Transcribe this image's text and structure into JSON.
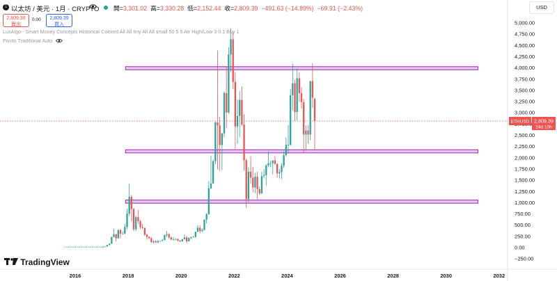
{
  "header": {
    "logo_glyph": "Ξ",
    "title": "以太坊 / 美元 · 1月 · CRYPTO",
    "ohlc": {
      "open_label": "開=",
      "open": "3,301.02",
      "high_label": "高=",
      "high": "3,330.28",
      "low_label": "低=",
      "low": "2,152.44",
      "close_label": "收=",
      "close": "2,809.39",
      "change": "−491.63 (−14.89%)",
      "extra": "−69.91 (−2.43%)"
    },
    "currency": "USD"
  },
  "trade": {
    "sell_price": "2,809.39",
    "sell_label": "賣出",
    "spread": "0.00",
    "buy_price": "2,809.39",
    "buy_label": "買入"
  },
  "indicators": [
    {
      "label": "LuxAlgo - Smart Money Concepts Historical Colored All All tiny All All small 50 5 5 Atr High/Low 3 0.1 Buy 1"
    },
    {
      "label": "Pivots Traditional Auto"
    }
  ],
  "price_tag": {
    "symbol": "ETHUSD",
    "price": "2,809.39",
    "countdown": "24d 10h"
  },
  "brand": "TradingView",
  "colors": {
    "up": "#26a69a",
    "down": "#ef5350",
    "zone_fill": "#e7c7f0",
    "zone_stroke": "#9c27b0"
  },
  "chart_data": {
    "type": "candlestick",
    "y_ticks": [
      5000,
      4750,
      4500,
      4250,
      4000,
      3750,
      3500,
      3250,
      3000,
      2750,
      2500,
      2250,
      2000,
      1750,
      1500,
      1250,
      1000,
      750,
      500,
      250,
      0,
      -250
    ],
    "y_tick_labels": [
      "5,000.00",
      "4,750.00",
      "4,500.00",
      "4,250.00",
      "4,000.00",
      "3,750.00",
      "3,500.00",
      "3,250.00",
      "3,000.00",
      "2,750.00",
      "2,500.00",
      "2,250.00",
      "2,000.00",
      "1,750.00",
      "1,500.00",
      "1,250.00",
      "1,000.00",
      "750.00",
      "500.00",
      "250.00",
      "0.00",
      "−250.00"
    ],
    "x_ticks": [
      2016,
      2018,
      2020,
      2022,
      2024,
      2026,
      2028,
      2030,
      2032
    ],
    "zones": [
      {
        "low": 3950,
        "high": 4020,
        "x_start": 2017.9,
        "x_end": 2031.2
      },
      {
        "low": 2100,
        "high": 2170,
        "x_start": 2017.9,
        "x_end": 2031.2
      },
      {
        "low": 980,
        "high": 1050,
        "x_start": 2017.9,
        "x_end": 2031.2
      }
    ],
    "candles": [
      {
        "t": "2017-01",
        "o": 8,
        "h": 11,
        "l": 8,
        "c": 11
      },
      {
        "t": "2017-02",
        "o": 11,
        "h": 17,
        "l": 10,
        "c": 16
      },
      {
        "t": "2017-03",
        "o": 16,
        "h": 55,
        "l": 15,
        "c": 50
      },
      {
        "t": "2017-04",
        "o": 50,
        "h": 83,
        "l": 42,
        "c": 80
      },
      {
        "t": "2017-05",
        "o": 80,
        "h": 232,
        "l": 75,
        "c": 230
      },
      {
        "t": "2017-06",
        "o": 230,
        "h": 410,
        "l": 220,
        "c": 290
      },
      {
        "t": "2017-07",
        "o": 290,
        "h": 300,
        "l": 130,
        "c": 200
      },
      {
        "t": "2017-08",
        "o": 200,
        "h": 395,
        "l": 190,
        "c": 385
      },
      {
        "t": "2017-09",
        "o": 385,
        "h": 400,
        "l": 200,
        "c": 300
      },
      {
        "t": "2017-10",
        "o": 300,
        "h": 350,
        "l": 280,
        "c": 305
      },
      {
        "t": "2017-11",
        "o": 305,
        "h": 520,
        "l": 290,
        "c": 450
      },
      {
        "t": "2017-12",
        "o": 450,
        "h": 860,
        "l": 400,
        "c": 750
      },
      {
        "t": "2018-01",
        "o": 750,
        "h": 1420,
        "l": 700,
        "c": 1120
      },
      {
        "t": "2018-02",
        "o": 1120,
        "h": 1160,
        "l": 570,
        "c": 850
      },
      {
        "t": "2018-03",
        "o": 850,
        "h": 880,
        "l": 360,
        "c": 400
      },
      {
        "t": "2018-04",
        "o": 400,
        "h": 700,
        "l": 360,
        "c": 670
      },
      {
        "t": "2018-05",
        "o": 670,
        "h": 830,
        "l": 520,
        "c": 580
      },
      {
        "t": "2018-06",
        "o": 580,
        "h": 610,
        "l": 400,
        "c": 450
      },
      {
        "t": "2018-07",
        "o": 450,
        "h": 520,
        "l": 410,
        "c": 430
      },
      {
        "t": "2018-08",
        "o": 430,
        "h": 440,
        "l": 250,
        "c": 280
      },
      {
        "t": "2018-09",
        "o": 280,
        "h": 300,
        "l": 170,
        "c": 230
      },
      {
        "t": "2018-10",
        "o": 230,
        "h": 240,
        "l": 190,
        "c": 200
      },
      {
        "t": "2018-11",
        "o": 200,
        "h": 225,
        "l": 100,
        "c": 115
      },
      {
        "t": "2018-12",
        "o": 115,
        "h": 160,
        "l": 80,
        "c": 133
      },
      {
        "t": "2019-01",
        "o": 133,
        "h": 160,
        "l": 100,
        "c": 108
      },
      {
        "t": "2019-02",
        "o": 108,
        "h": 165,
        "l": 100,
        "c": 136
      },
      {
        "t": "2019-03",
        "o": 136,
        "h": 145,
        "l": 125,
        "c": 141
      },
      {
        "t": "2019-04",
        "o": 141,
        "h": 185,
        "l": 140,
        "c": 160
      },
      {
        "t": "2019-05",
        "o": 160,
        "h": 285,
        "l": 155,
        "c": 270
      },
      {
        "t": "2019-06",
        "o": 270,
        "h": 365,
        "l": 230,
        "c": 290
      },
      {
        "t": "2019-07",
        "o": 290,
        "h": 315,
        "l": 190,
        "c": 218
      },
      {
        "t": "2019-08",
        "o": 218,
        "h": 238,
        "l": 165,
        "c": 172
      },
      {
        "t": "2019-09",
        "o": 172,
        "h": 225,
        "l": 150,
        "c": 180
      },
      {
        "t": "2019-10",
        "o": 180,
        "h": 200,
        "l": 155,
        "c": 182
      },
      {
        "t": "2019-11",
        "o": 182,
        "h": 195,
        "l": 130,
        "c": 150
      },
      {
        "t": "2019-12",
        "o": 150,
        "h": 155,
        "l": 120,
        "c": 129
      },
      {
        "t": "2020-01",
        "o": 129,
        "h": 185,
        "l": 125,
        "c": 180
      },
      {
        "t": "2020-02",
        "o": 180,
        "h": 287,
        "l": 175,
        "c": 218
      },
      {
        "t": "2020-03",
        "o": 218,
        "h": 250,
        "l": 90,
        "c": 133
      },
      {
        "t": "2020-04",
        "o": 133,
        "h": 225,
        "l": 130,
        "c": 206
      },
      {
        "t": "2020-05",
        "o": 206,
        "h": 230,
        "l": 180,
        "c": 231
      },
      {
        "t": "2020-06",
        "o": 231,
        "h": 255,
        "l": 215,
        "c": 225
      },
      {
        "t": "2020-07",
        "o": 225,
        "h": 350,
        "l": 220,
        "c": 345
      },
      {
        "t": "2020-08",
        "o": 345,
        "h": 490,
        "l": 340,
        "c": 435
      },
      {
        "t": "2020-09",
        "o": 435,
        "h": 490,
        "l": 310,
        "c": 360
      },
      {
        "t": "2020-10",
        "o": 360,
        "h": 420,
        "l": 335,
        "c": 386
      },
      {
        "t": "2020-11",
        "o": 386,
        "h": 620,
        "l": 380,
        "c": 615
      },
      {
        "t": "2020-12",
        "o": 615,
        "h": 760,
        "l": 530,
        "c": 738
      },
      {
        "t": "2021-01",
        "o": 738,
        "h": 1470,
        "l": 720,
        "c": 1314
      },
      {
        "t": "2021-02",
        "o": 1314,
        "h": 2040,
        "l": 1290,
        "c": 1420
      },
      {
        "t": "2021-03",
        "o": 1420,
        "h": 1950,
        "l": 1420,
        "c": 1918
      },
      {
        "t": "2021-04",
        "o": 1918,
        "h": 2800,
        "l": 1850,
        "c": 2780
      },
      {
        "t": "2021-05",
        "o": 2780,
        "h": 4380,
        "l": 1730,
        "c": 2710
      },
      {
        "t": "2021-06",
        "o": 2710,
        "h": 2900,
        "l": 1700,
        "c": 2275
      },
      {
        "t": "2021-07",
        "o": 2275,
        "h": 2550,
        "l": 1720,
        "c": 2535
      },
      {
        "t": "2021-08",
        "o": 2535,
        "h": 3470,
        "l": 2450,
        "c": 3430
      },
      {
        "t": "2021-09",
        "o": 3430,
        "h": 4030,
        "l": 2650,
        "c": 3000
      },
      {
        "t": "2021-10",
        "o": 3000,
        "h": 4450,
        "l": 2970,
        "c": 4290
      },
      {
        "t": "2021-11",
        "o": 4290,
        "h": 4870,
        "l": 3900,
        "c": 4630
      },
      {
        "t": "2021-12",
        "o": 4630,
        "h": 4780,
        "l": 3530,
        "c": 3680
      },
      {
        "t": "2022-01",
        "o": 3680,
        "h": 3900,
        "l": 2160,
        "c": 2690
      },
      {
        "t": "2022-02",
        "o": 2690,
        "h": 3290,
        "l": 2300,
        "c": 2920
      },
      {
        "t": "2022-03",
        "o": 2920,
        "h": 3480,
        "l": 2450,
        "c": 3280
      },
      {
        "t": "2022-04",
        "o": 3280,
        "h": 3580,
        "l": 2700,
        "c": 2730
      },
      {
        "t": "2022-05",
        "o": 2730,
        "h": 2960,
        "l": 1700,
        "c": 1940
      },
      {
        "t": "2022-06",
        "o": 1940,
        "h": 1970,
        "l": 880,
        "c": 1070
      },
      {
        "t": "2022-07",
        "o": 1070,
        "h": 1780,
        "l": 1000,
        "c": 1680
      },
      {
        "t": "2022-08",
        "o": 1680,
        "h": 2030,
        "l": 1420,
        "c": 1550
      },
      {
        "t": "2022-09",
        "o": 1550,
        "h": 1790,
        "l": 1220,
        "c": 1330
      },
      {
        "t": "2022-10",
        "o": 1330,
        "h": 1660,
        "l": 1200,
        "c": 1570
      },
      {
        "t": "2022-11",
        "o": 1570,
        "h": 1680,
        "l": 1070,
        "c": 1295
      },
      {
        "t": "2022-12",
        "o": 1295,
        "h": 1350,
        "l": 1160,
        "c": 1196
      },
      {
        "t": "2023-01",
        "o": 1196,
        "h": 1680,
        "l": 1190,
        "c": 1585
      },
      {
        "t": "2023-02",
        "o": 1585,
        "h": 1740,
        "l": 1530,
        "c": 1605
      },
      {
        "t": "2023-03",
        "o": 1605,
        "h": 1850,
        "l": 1370,
        "c": 1822
      },
      {
        "t": "2023-04",
        "o": 1822,
        "h": 2140,
        "l": 1780,
        "c": 1870
      },
      {
        "t": "2023-05",
        "o": 1870,
        "h": 1930,
        "l": 1780,
        "c": 1873
      },
      {
        "t": "2023-06",
        "o": 1873,
        "h": 1930,
        "l": 1620,
        "c": 1934
      },
      {
        "t": "2023-07",
        "o": 1934,
        "h": 2030,
        "l": 1840,
        "c": 1856
      },
      {
        "t": "2023-08",
        "o": 1856,
        "h": 1870,
        "l": 1550,
        "c": 1645
      },
      {
        "t": "2023-09",
        "o": 1645,
        "h": 1750,
        "l": 1530,
        "c": 1671
      },
      {
        "t": "2023-10",
        "o": 1671,
        "h": 1865,
        "l": 1520,
        "c": 1815
      },
      {
        "t": "2023-11",
        "o": 1815,
        "h": 2140,
        "l": 1770,
        "c": 2050
      },
      {
        "t": "2023-12",
        "o": 2050,
        "h": 2450,
        "l": 2020,
        "c": 2280
      },
      {
        "t": "2024-01",
        "o": 2280,
        "h": 2720,
        "l": 2100,
        "c": 2280
      },
      {
        "t": "2024-02",
        "o": 2280,
        "h": 3520,
        "l": 2260,
        "c": 3385
      },
      {
        "t": "2024-03",
        "o": 3385,
        "h": 4090,
        "l": 3050,
        "c": 3650
      },
      {
        "t": "2024-04",
        "o": 3650,
        "h": 3730,
        "l": 2810,
        "c": 3010
      },
      {
        "t": "2024-05",
        "o": 3010,
        "h": 3980,
        "l": 2820,
        "c": 3760
      },
      {
        "t": "2024-06",
        "o": 3760,
        "h": 3890,
        "l": 3240,
        "c": 3430
      },
      {
        "t": "2024-07",
        "o": 3430,
        "h": 3560,
        "l": 3080,
        "c": 3230
      },
      {
        "t": "2024-08",
        "o": 3230,
        "h": 3300,
        "l": 2110,
        "c": 2510
      },
      {
        "t": "2024-09",
        "o": 2510,
        "h": 2710,
        "l": 2150,
        "c": 2600
      },
      {
        "t": "2024-10",
        "o": 2600,
        "h": 2720,
        "l": 2300,
        "c": 2510
      },
      {
        "t": "2024-11",
        "o": 2510,
        "h": 3700,
        "l": 2380,
        "c": 3700
      },
      {
        "t": "2024-12",
        "o": 3700,
        "h": 4100,
        "l": 3100,
        "c": 3330
      },
      {
        "t": "2025-01",
        "o": 3301.02,
        "h": 3330.28,
        "l": 2152.44,
        "c": 2809.39
      }
    ]
  }
}
